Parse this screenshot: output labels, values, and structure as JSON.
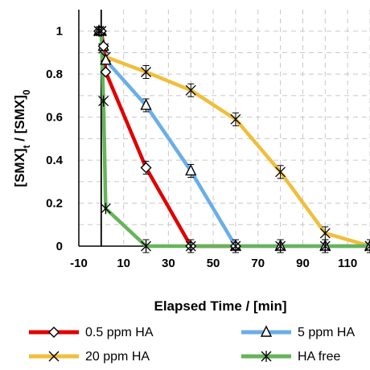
{
  "chart_data": {
    "type": "line",
    "xlabel": "Elapsed Time / [min]",
    "ylabel": {
      "part1": "[SMX]",
      "sub1": "t",
      "part2": " / [SMX]",
      "sub2": "0"
    },
    "xlim": [
      -10,
      120
    ],
    "ylim": [
      0,
      1.1
    ],
    "xticks": [
      "-10",
      "10",
      "30",
      "50",
      "70",
      "90",
      "110"
    ],
    "xtick_values": [
      -10,
      10,
      30,
      50,
      70,
      90,
      110
    ],
    "yticks": [
      "0",
      "0.2",
      "0.4",
      "0.6",
      "0.8",
      "1"
    ],
    "ytick_values": [
      0,
      0.2,
      0.4,
      0.6,
      0.8,
      1
    ],
    "grid": true,
    "vertical_reference_x": 0,
    "legend_position": "bottom",
    "series": [
      {
        "name": "0.5 ppm HA",
        "color": "#e00000",
        "marker": "diamond",
        "x": [
          -1,
          0,
          1,
          2,
          20,
          40,
          60
        ],
        "y": [
          1.0,
          1.0,
          0.93,
          0.81,
          0.365,
          0.0,
          0.0
        ]
      },
      {
        "name": "5 ppm HA",
        "color": "#6aaee8",
        "marker": "triangle",
        "x": [
          -1,
          0,
          1,
          2,
          20,
          40,
          60,
          80,
          100,
          120
        ],
        "y": [
          1.0,
          1.0,
          0.93,
          0.865,
          0.655,
          0.35,
          0.0,
          0.0,
          0.0,
          0.0
        ]
      },
      {
        "name": "20  ppm HA",
        "color": "#f0be3c",
        "marker": "x",
        "x": [
          -1,
          0,
          1,
          2,
          20,
          40,
          60,
          80,
          100,
          120
        ],
        "y": [
          1.0,
          1.0,
          0.92,
          0.88,
          0.81,
          0.725,
          0.59,
          0.345,
          0.06,
          0.0
        ]
      },
      {
        "name": "HA free",
        "color": "#66b45a",
        "marker": "asterisk",
        "x": [
          -1,
          0,
          1,
          2,
          20,
          40,
          60,
          80,
          100,
          120
        ],
        "y": [
          1.0,
          1.0,
          0.675,
          0.175,
          0.0,
          0.0,
          0.0,
          0.0,
          0.0,
          0.0
        ]
      }
    ]
  }
}
